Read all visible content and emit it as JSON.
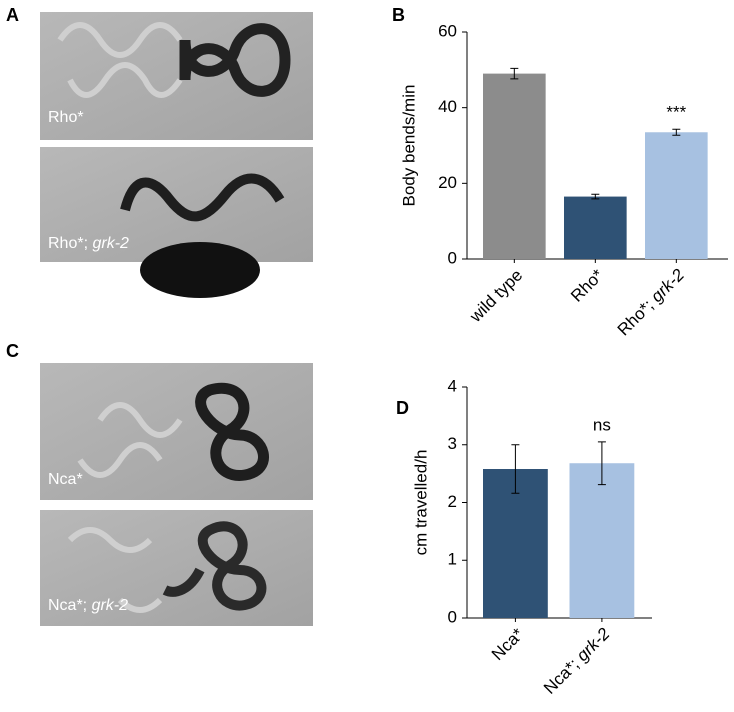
{
  "panels": [
    {
      "label": "A",
      "captions": [
        "Rho*",
        "Rho*; grk-2"
      ]
    },
    {
      "label": "B"
    },
    {
      "label": "C",
      "captions": [
        "Nca*",
        "Nca*; grk-2"
      ]
    },
    {
      "label": "D"
    }
  ],
  "chart_data": [
    {
      "type": "bar",
      "ylabel": "Body bends/min",
      "categories": [
        "wild type",
        "Rho*",
        "Rho*; grk-2"
      ],
      "values": [
        49,
        16.5,
        33.5
      ],
      "errors": [
        1.4,
        0.6,
        0.8
      ],
      "colors": [
        "#8c8c8c",
        "#2f5275",
        "#a7c1e1"
      ],
      "annotations": [
        null,
        null,
        "***"
      ],
      "ylim": [
        0,
        60
      ],
      "yticks": [
        0,
        20,
        40,
        60
      ]
    },
    {
      "type": "bar",
      "ylabel": "cm travelled/h",
      "categories": [
        "Nca*",
        "Nca*; grk-2"
      ],
      "values": [
        2.58,
        2.68
      ],
      "errors": [
        0.42,
        0.37
      ],
      "colors": [
        "#2f5275",
        "#a7c1e1"
      ],
      "annotations": [
        null,
        "ns"
      ],
      "ylim": [
        0,
        4
      ],
      "yticks": [
        0,
        1,
        2,
        3,
        4
      ]
    }
  ]
}
